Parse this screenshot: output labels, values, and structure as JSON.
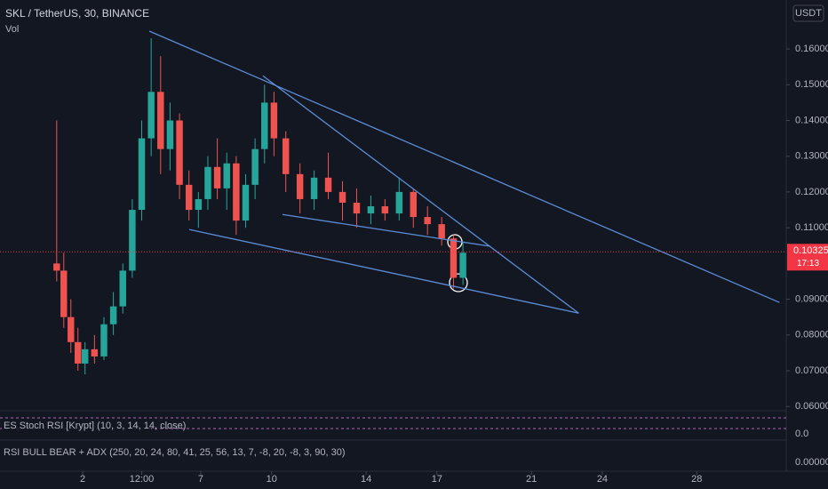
{
  "chart_data": {
    "type": "candlestick",
    "title": "SKL / TetherUS, 30, BINANCE",
    "subtitle": "Vol",
    "currency": "USDT",
    "up_color": "#26a69a",
    "down_color": "#ef5350",
    "x": [
      0.9,
      1.2,
      1.5,
      1.8,
      2.1,
      2.5,
      2.9,
      3.3,
      3.7,
      4.1,
      4.5,
      4.9,
      5.3,
      5.7,
      6.1,
      6.5,
      6.9,
      7.3,
      7.7,
      8.1,
      8.5,
      8.9,
      9.3,
      9.7,
      10.1,
      10.6,
      11.2,
      11.8,
      12.4,
      13.0,
      13.6,
      14.2,
      14.8,
      15.4,
      16.0,
      16.6,
      17.2,
      17.7,
      18.1
    ],
    "open": [
      0.1,
      0.098,
      0.085,
      0.078,
      0.072,
      0.076,
      0.074,
      0.083,
      0.088,
      0.098,
      0.115,
      0.135,
      0.148,
      0.132,
      0.14,
      0.122,
      0.115,
      0.118,
      0.127,
      0.121,
      0.128,
      0.112,
      0.122,
      0.132,
      0.145,
      0.135,
      0.125,
      0.118,
      0.124,
      0.12,
      0.117,
      0.114,
      0.116,
      0.114,
      0.12,
      0.113,
      0.111,
      0.107,
      0.096
    ],
    "high": [
      0.14,
      0.103,
      0.09,
      0.082,
      0.078,
      0.08,
      0.085,
      0.092,
      0.1,
      0.118,
      0.14,
      0.163,
      0.158,
      0.145,
      0.142,
      0.126,
      0.12,
      0.13,
      0.135,
      0.131,
      0.13,
      0.125,
      0.135,
      0.15,
      0.148,
      0.137,
      0.128,
      0.126,
      0.131,
      0.123,
      0.121,
      0.119,
      0.118,
      0.124,
      0.121,
      0.116,
      0.113,
      0.108,
      0.106
    ],
    "low": [
      0.095,
      0.082,
      0.075,
      0.07,
      0.069,
      0.072,
      0.073,
      0.08,
      0.086,
      0.096,
      0.112,
      0.13,
      0.125,
      0.126,
      0.118,
      0.112,
      0.11,
      0.115,
      0.118,
      0.115,
      0.108,
      0.11,
      0.118,
      0.128,
      0.13,
      0.12,
      0.114,
      0.115,
      0.118,
      0.112,
      0.11,
      0.111,
      0.112,
      0.112,
      0.11,
      0.108,
      0.105,
      0.093,
      0.094
    ],
    "close": [
      0.098,
      0.085,
      0.078,
      0.072,
      0.076,
      0.074,
      0.083,
      0.088,
      0.098,
      0.115,
      0.135,
      0.148,
      0.132,
      0.14,
      0.122,
      0.115,
      0.118,
      0.127,
      0.121,
      0.128,
      0.112,
      0.122,
      0.132,
      0.145,
      0.135,
      0.125,
      0.118,
      0.124,
      0.12,
      0.117,
      0.114,
      0.116,
      0.114,
      0.12,
      0.113,
      0.111,
      0.107,
      0.096,
      0.103
    ],
    "xlim": [
      -1.5,
      31.6
    ],
    "ylim": [
      0.0588,
      0.1737
    ],
    "xticks": [
      {
        "value": 2,
        "label": "2"
      },
      {
        "value": 4.5,
        "label": "12:00"
      },
      {
        "value": 7,
        "label": "7"
      },
      {
        "value": 10,
        "label": "10"
      },
      {
        "value": 14,
        "label": "14"
      },
      {
        "value": 17,
        "label": "17"
      },
      {
        "value": 21,
        "label": "21"
      },
      {
        "value": 24,
        "label": "24"
      },
      {
        "value": 28,
        "label": "28"
      }
    ],
    "yticks": [
      {
        "value": 0.16,
        "label": "0.16000"
      },
      {
        "value": 0.15,
        "label": "0.15000"
      },
      {
        "value": 0.14,
        "label": "0.14000"
      },
      {
        "value": 0.13,
        "label": "0.13000"
      },
      {
        "value": 0.12,
        "label": "0.12000"
      },
      {
        "value": 0.11,
        "label": "0.11000"
      },
      {
        "value": 0.09,
        "label": "0.09000"
      },
      {
        "value": 0.08,
        "label": "0.08000"
      },
      {
        "value": 0.07,
        "label": "0.07000"
      },
      {
        "value": 0.06,
        "label": "0.06000"
      }
    ],
    "last_price": {
      "value": 0.10325,
      "label": "0.10325",
      "countdown": "17:13",
      "color": "#f23645"
    },
    "trendline_color": "#5b8dd6",
    "trendlines": [
      {
        "points": [
          [
            4.82,
            0.165
          ],
          [
            31.5,
            0.0891
          ]
        ]
      },
      {
        "points": [
          [
            9.63,
            0.1525
          ],
          [
            23.0,
            0.0861
          ]
        ]
      },
      {
        "points": [
          [
            6.51,
            0.1095
          ],
          [
            23.0,
            0.0861
          ]
        ]
      },
      {
        "points": [
          [
            10.46,
            0.1137
          ],
          [
            19.26,
            0.1048
          ]
        ]
      }
    ],
    "indicators": [
      {
        "label": "ES Stoch RSI [Krypt] (10, 3, 14, 14, close)",
        "tick": "0.0"
      },
      {
        "label": "RSI BULL BEAR + ADX (250, 20, 24, 80, 41, 25, 56, 13, 7, -8, 20, -8, 3, 90, 30)",
        "tick": "0.00000"
      }
    ]
  }
}
